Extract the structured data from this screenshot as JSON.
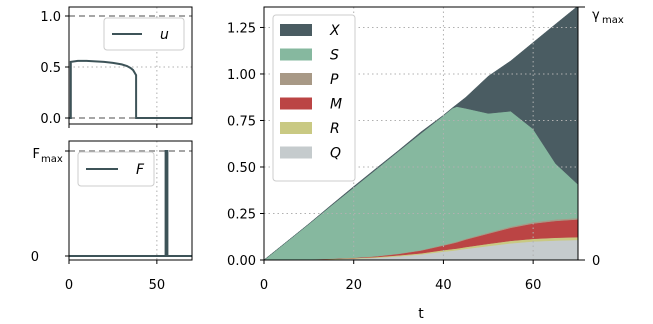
{
  "chart_data": [
    {
      "id": "u_panel",
      "type": "line",
      "xlim": [
        0,
        70
      ],
      "ylim": [
        0,
        1.0
      ],
      "xticks": [
        0,
        50
      ],
      "yticks": [
        0.0,
        0.5,
        1.0
      ],
      "ytick_labels": [
        "0.0",
        "0.5",
        "1.0"
      ],
      "xtick_labels": [
        "0",
        "50"
      ],
      "reference_lines": [
        1.0,
        0.0
      ],
      "grid": true,
      "legend": {
        "entries": [
          "u"
        ],
        "placement": "upper-right"
      },
      "series": [
        {
          "name": "u",
          "color": "#3d5358",
          "points": [
            [
              0,
              0
            ],
            [
              1,
              0
            ],
            [
              1,
              0.55
            ],
            [
              5,
              0.56
            ],
            [
              10,
              0.56
            ],
            [
              15,
              0.555
            ],
            [
              20,
              0.55
            ],
            [
              25,
              0.54
            ],
            [
              30,
              0.525
            ],
            [
              33,
              0.51
            ],
            [
              35,
              0.49
            ],
            [
              36.5,
              0.47
            ],
            [
              37.5,
              0.44
            ],
            [
              38.2,
              0.42
            ],
            [
              38.2,
              0
            ],
            [
              70,
              0
            ]
          ]
        }
      ]
    },
    {
      "id": "F_panel",
      "type": "line",
      "xlim": [
        0,
        70
      ],
      "ylim": [
        0,
        1.0
      ],
      "xticks": [
        0,
        50
      ],
      "xtick_labels": [
        "0",
        "50"
      ],
      "ytick_labels": [
        "0",
        "F_max"
      ],
      "ytick_label_max": {
        "base": "F",
        "sub": "max"
      },
      "reference_lines": [
        1.0,
        0.0
      ],
      "grid": true,
      "legend": {
        "entries": [
          "F"
        ],
        "placement": "upper-left"
      },
      "series": [
        {
          "name": "F",
          "color": "#3d5358",
          "points": [
            [
              0,
              0
            ],
            [
              55,
              0
            ],
            [
              55,
              1.0
            ],
            [
              56,
              1.0
            ],
            [
              56,
              0
            ],
            [
              70,
              0
            ]
          ]
        }
      ]
    },
    {
      "id": "main_panel",
      "type": "area",
      "stacked": true,
      "xlabel": "t",
      "xlim": [
        0,
        70
      ],
      "ylim": [
        0,
        1.36
      ],
      "xticks": [
        0,
        20,
        40,
        60
      ],
      "xtick_labels": [
        "0",
        "20",
        "40",
        "60"
      ],
      "yticks": [
        0.0,
        0.25,
        0.5,
        0.75,
        1.0,
        1.25
      ],
      "ytick_labels": [
        "0.00",
        "0.25",
        "0.50",
        "0.75",
        "1.00",
        "1.25"
      ],
      "right_axis": {
        "top_label": {
          "base": "γ",
          "sub": "max"
        },
        "bottom_label": "0"
      },
      "grid": true,
      "legend": {
        "placement": "upper-left"
      },
      "x": [
        0,
        5,
        10,
        15,
        20,
        25,
        30,
        35,
        40,
        42,
        43,
        45,
        50,
        55,
        60,
        65,
        70
      ],
      "total_envelope_slope": 0.01947,
      "series": [
        {
          "name": "Q",
          "color": "#c5cbcd",
          "values": [
            0,
            0.001,
            0.002,
            0.004,
            0.007,
            0.012,
            0.02,
            0.03,
            0.045,
            0.05,
            0.053,
            0.06,
            0.075,
            0.09,
            0.1,
            0.105,
            0.108
          ]
        },
        {
          "name": "R",
          "color": "#c9c983",
          "values": [
            0,
            0.0005,
            0.001,
            0.002,
            0.003,
            0.004,
            0.005,
            0.006,
            0.008,
            0.009,
            0.009,
            0.01,
            0.012,
            0.013,
            0.014,
            0.015,
            0.015
          ]
        },
        {
          "name": "M",
          "color": "#bb4444",
          "values": [
            0,
            0.0002,
            0.0005,
            0.001,
            0.002,
            0.004,
            0.008,
            0.015,
            0.025,
            0.03,
            0.033,
            0.04,
            0.055,
            0.07,
            0.082,
            0.09,
            0.095
          ]
        },
        {
          "name": "P",
          "color": "#a89986",
          "values": [
            0,
            0.0001,
            0.0002,
            0.0004,
            0.0008,
            0.0012,
            0.002,
            0.003,
            0.004,
            0.0045,
            0.0048,
            0.005,
            0.006,
            0.007,
            0.008,
            0.008,
            0.008
          ]
        },
        {
          "name": "S",
          "color": "#86b89f",
          "values": [
            0,
            0.095,
            0.19,
            0.285,
            0.377,
            0.466,
            0.55,
            0.627,
            0.694,
            0.722,
            0.725,
            0.7,
            0.64,
            0.62,
            0.5,
            0.3,
            0.18
          ]
        },
        {
          "name": "X",
          "color": "#4a5c62",
          "values": [
            0,
            0.0002,
            0.001,
            0.003,
            0.0052,
            0.0053,
            0.0044,
            0.0075,
            0.0026,
            0.0025,
            0.0121,
            0.06,
            0.2,
            0.27,
            0.465,
            0.75,
            0.96
          ]
        }
      ]
    }
  ]
}
